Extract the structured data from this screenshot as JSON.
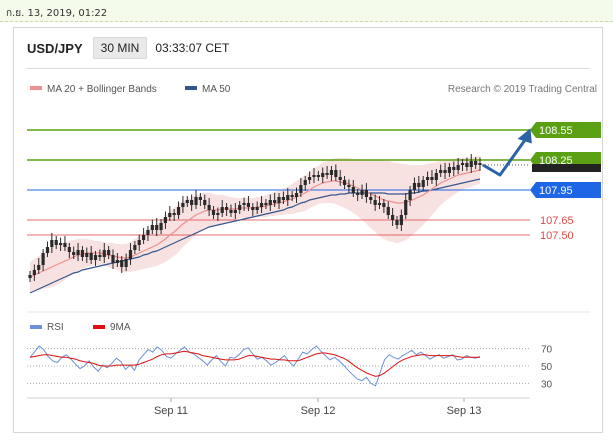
{
  "date_bar": {
    "text": "ก.ย. 13, 2019, 01:22"
  },
  "header": {
    "pair": "USD/JPY",
    "timeframe": "30 MIN",
    "time": "03:33:07 CET"
  },
  "colors": {
    "resistance": "#5aa012",
    "pivot": "#1f66e6",
    "support": "#e04848",
    "ma20": "#ef8f8f",
    "ma50": "#34568f",
    "band": "#f6d7d7",
    "arrow": "#2a64a6",
    "rsi": "#6b91d6",
    "rsi_ma": "#e01010"
  },
  "chart_data": [
    {
      "type": "candlestick",
      "title": "USD/JPY",
      "legend": [
        {
          "name": "MA 20 + Bollinger Bands",
          "color": "#ef8f8f"
        },
        {
          "name": "MA 50",
          "color": "#34568f"
        }
      ],
      "source": "Research © 2019 Trading Central",
      "ylim": [
        106.8,
        108.75
      ],
      "x_ticks": [
        "Sep 11",
        "Sep 12",
        "Sep 13"
      ],
      "levels": [
        {
          "value": 108.55,
          "label": "108.55",
          "kind": "resistance"
        },
        {
          "value": 108.25,
          "label": "108.25",
          "kind": "resistance"
        },
        {
          "value": 107.95,
          "label": "107.95",
          "kind": "pivot"
        },
        {
          "value": 107.65,
          "label": "107.65",
          "kind": "support"
        },
        {
          "value": 107.5,
          "label": "107.50",
          "kind": "support"
        }
      ],
      "last_price": 108.2,
      "close": [
        107.1,
        107.15,
        107.2,
        107.32,
        107.38,
        107.45,
        107.4,
        107.42,
        107.38,
        107.33,
        107.3,
        107.35,
        107.28,
        107.32,
        107.25,
        107.3,
        107.28,
        107.35,
        107.3,
        107.22,
        107.25,
        107.18,
        107.26,
        107.35,
        107.4,
        107.45,
        107.5,
        107.55,
        107.6,
        107.55,
        107.62,
        107.68,
        107.72,
        107.7,
        107.78,
        107.82,
        107.85,
        107.8,
        107.88,
        107.85,
        107.8,
        107.75,
        107.7,
        107.72,
        107.78,
        107.75,
        107.72,
        107.75,
        107.8,
        107.82,
        107.78,
        107.75,
        107.78,
        107.82,
        107.8,
        107.85,
        107.82,
        107.88,
        107.85,
        107.9,
        107.88,
        107.92,
        108.0,
        108.05,
        108.08,
        108.1,
        108.08,
        108.12,
        108.1,
        108.15,
        108.08,
        108.05,
        108.0,
        107.98,
        107.92,
        107.9,
        107.95,
        107.88,
        107.85,
        107.8,
        107.82,
        107.78,
        107.7,
        107.65,
        107.6,
        107.7,
        107.85,
        107.95,
        108.02,
        107.98,
        108.05,
        108.08,
        108.05,
        108.12,
        108.15,
        108.12,
        108.18,
        108.15,
        108.2,
        108.22,
        108.18,
        108.24,
        108.2,
        108.22
      ],
      "ma20": [
        107.08,
        107.1,
        107.12,
        107.14,
        107.16,
        107.18,
        107.2,
        107.22,
        107.24,
        107.26,
        107.28,
        107.3,
        107.31,
        107.32,
        107.32,
        107.32,
        107.32,
        107.31,
        107.3,
        107.29,
        107.28,
        107.27,
        107.27,
        107.28,
        107.3,
        107.32,
        107.34,
        107.36,
        107.38,
        107.4,
        107.43,
        107.46,
        107.5,
        107.53,
        107.57,
        107.61,
        107.64,
        107.67,
        107.7,
        107.72,
        107.74,
        107.75,
        107.75,
        107.75,
        107.76,
        107.76,
        107.76,
        107.76,
        107.77,
        107.77,
        107.77,
        107.77,
        107.78,
        107.78,
        107.79,
        107.8,
        107.81,
        107.82,
        107.83,
        107.85,
        107.86,
        107.88,
        107.9,
        107.92,
        107.95,
        107.98,
        108.0,
        108.02,
        108.03,
        108.04,
        108.04,
        108.03,
        108.02,
        108.01,
        107.99,
        107.97,
        107.95,
        107.93,
        107.91,
        107.89,
        107.87,
        107.85,
        107.84,
        107.83,
        107.82,
        107.82,
        107.83,
        107.84,
        107.86,
        107.88,
        107.9,
        107.93,
        107.96,
        107.99,
        108.02,
        108.04,
        108.06,
        108.08,
        108.1,
        108.11,
        108.12,
        108.13,
        108.14,
        108.15
      ],
      "ma50": [
        106.92,
        106.94,
        106.96,
        106.98,
        107.0,
        107.02,
        107.04,
        107.06,
        107.08,
        107.1,
        107.12,
        107.13,
        107.15,
        107.16,
        107.17,
        107.18,
        107.19,
        107.2,
        107.21,
        107.22,
        107.23,
        107.24,
        107.25,
        107.26,
        107.27,
        107.28,
        107.3,
        107.31,
        107.33,
        107.34,
        107.36,
        107.38,
        107.4,
        107.42,
        107.44,
        107.46,
        107.48,
        107.5,
        107.52,
        107.54,
        107.56,
        107.58,
        107.59,
        107.6,
        107.61,
        107.62,
        107.63,
        107.64,
        107.65,
        107.66,
        107.67,
        107.68,
        107.69,
        107.7,
        107.71,
        107.72,
        107.73,
        107.74,
        107.75,
        107.77,
        107.78,
        107.8,
        107.82,
        107.83,
        107.85,
        107.86,
        107.87,
        107.88,
        107.89,
        107.9,
        107.9,
        107.91,
        107.91,
        107.92,
        107.92,
        107.92,
        107.92,
        107.92,
        107.92,
        107.92,
        107.92,
        107.92,
        107.91,
        107.91,
        107.91,
        107.91,
        107.91,
        107.92,
        107.92,
        107.93,
        107.94,
        107.94,
        107.95,
        107.96,
        107.97,
        107.98,
        107.99,
        108.0,
        108.01,
        108.02,
        108.03,
        108.04,
        108.05,
        108.06
      ],
      "band_width": [
        0.15,
        0.16,
        0.17,
        0.18,
        0.19,
        0.2,
        0.2,
        0.2,
        0.19,
        0.18,
        0.17,
        0.16,
        0.15,
        0.14,
        0.13,
        0.12,
        0.12,
        0.12,
        0.12,
        0.13,
        0.13,
        0.14,
        0.14,
        0.15,
        0.16,
        0.17,
        0.18,
        0.19,
        0.2,
        0.21,
        0.22,
        0.23,
        0.24,
        0.24,
        0.24,
        0.23,
        0.22,
        0.21,
        0.2,
        0.19,
        0.18,
        0.17,
        0.16,
        0.15,
        0.14,
        0.13,
        0.12,
        0.11,
        0.1,
        0.1,
        0.1,
        0.1,
        0.1,
        0.1,
        0.11,
        0.11,
        0.12,
        0.12,
        0.13,
        0.14,
        0.15,
        0.16,
        0.17,
        0.18,
        0.18,
        0.19,
        0.19,
        0.2,
        0.21,
        0.22,
        0.23,
        0.24,
        0.25,
        0.26,
        0.27,
        0.28,
        0.3,
        0.32,
        0.34,
        0.36,
        0.38,
        0.39,
        0.4,
        0.4,
        0.4,
        0.39,
        0.38,
        0.36,
        0.34,
        0.32,
        0.3,
        0.28,
        0.26,
        0.24,
        0.22,
        0.2,
        0.19,
        0.18,
        0.17,
        0.16,
        0.15,
        0.15,
        0.14,
        0.14
      ],
      "projection": [
        108.2,
        108.1,
        108.55
      ]
    },
    {
      "type": "line",
      "title": "RSI",
      "legend": [
        {
          "name": "RSI",
          "color": "#6b91d6"
        },
        {
          "name": "9MA",
          "color": "#e01010"
        }
      ],
      "ylim": [
        20,
        80
      ],
      "y_ticks": [
        70,
        50,
        30
      ],
      "dotted_levels": [
        70,
        50,
        30
      ],
      "series": [
        {
          "name": "RSI",
          "values": [
            60,
            66,
            73,
            69,
            61,
            56,
            54,
            60,
            63,
            58,
            52,
            47,
            50,
            56,
            49,
            44,
            51,
            48,
            53,
            59,
            55,
            46,
            51,
            45,
            57,
            63,
            69,
            66,
            72,
            68,
            61,
            59,
            64,
            68,
            72,
            66,
            64,
            60,
            56,
            51,
            57,
            62,
            55,
            50,
            60,
            59,
            63,
            69,
            71,
            64,
            58,
            60,
            56,
            51,
            54,
            58,
            62,
            55,
            50,
            58,
            66,
            64,
            69,
            73,
            67,
            62,
            57,
            60,
            56,
            51,
            45,
            40,
            35,
            33,
            37,
            30,
            27,
            42,
            57,
            63,
            60,
            58,
            62,
            65,
            68,
            63,
            66,
            62,
            58,
            61,
            63,
            59,
            61,
            63,
            57,
            58,
            62,
            60,
            59,
            61
          ]
        },
        {
          "name": "9MA",
          "values": [
            60,
            61,
            62,
            63,
            63,
            62,
            61,
            60,
            60,
            59,
            58,
            56,
            55,
            54,
            53,
            51,
            50,
            50,
            50,
            51,
            51,
            51,
            51,
            51,
            52,
            54,
            56,
            58,
            61,
            63,
            64,
            64,
            65,
            66,
            67,
            66,
            65,
            64,
            62,
            61,
            60,
            59,
            58,
            57,
            57,
            57,
            58,
            60,
            62,
            62,
            61,
            60,
            59,
            58,
            58,
            57,
            57,
            56,
            56,
            56,
            58,
            60,
            62,
            64,
            65,
            65,
            64,
            63,
            61,
            59,
            56,
            52,
            48,
            45,
            42,
            40,
            38,
            39,
            42,
            46,
            50,
            54,
            57,
            59,
            61,
            62,
            63,
            63,
            62,
            62,
            62,
            62,
            62,
            62,
            61,
            60,
            60,
            60,
            60,
            60
          ]
        }
      ]
    }
  ]
}
